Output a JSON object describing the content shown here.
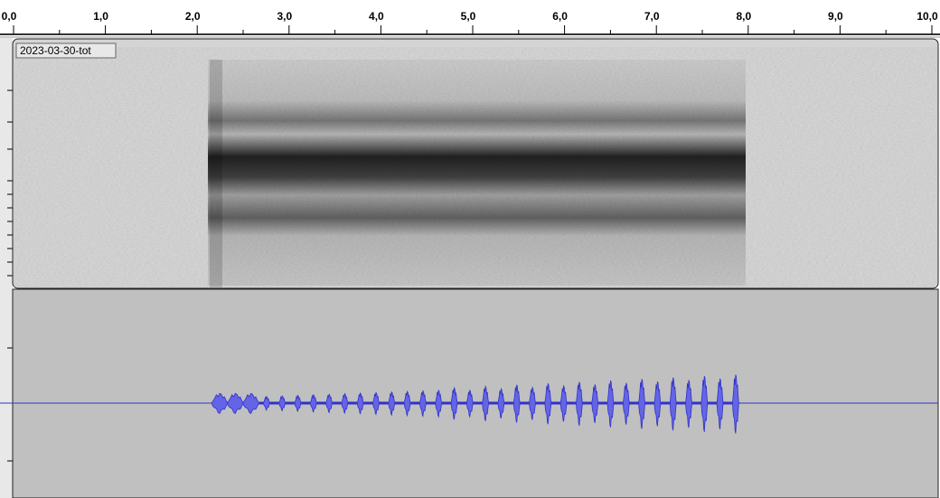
{
  "ruler": {
    "labels": [
      "0,0",
      "1,0",
      "2,0",
      "3,0",
      "4,0",
      "5,0",
      "6,0",
      "7,0",
      "8,0",
      "9,0",
      "10,0"
    ]
  },
  "track": {
    "name": "2023-03-30-tot"
  }
}
